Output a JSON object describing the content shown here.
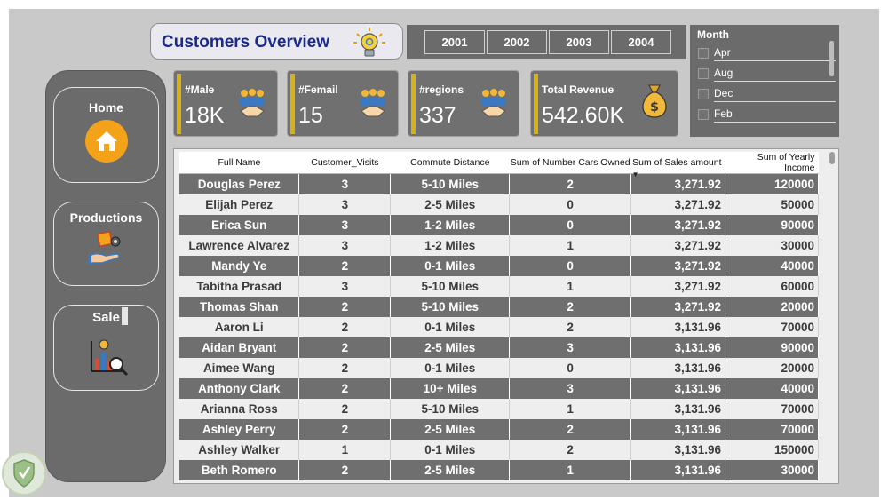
{
  "title": "Customers Overview",
  "nav": {
    "home": "Home",
    "productions": "Productions",
    "sale": "Sale"
  },
  "years": [
    "2001",
    "2002",
    "2003",
    "2004"
  ],
  "month_slicer": {
    "title": "Month",
    "items": [
      "Apr",
      "Aug",
      "Dec",
      "Feb"
    ]
  },
  "kpis": [
    {
      "label": "#Male",
      "value": "18K"
    },
    {
      "label": "#Femail",
      "value": "15"
    },
    {
      "label": "#regions",
      "value": "337"
    },
    {
      "label": "Total Revenue",
      "value": "542.60K"
    }
  ],
  "table": {
    "columns": [
      "Full Name",
      "Customer_Visits",
      "Commute Distance",
      "Sum of Number Cars Owned",
      "Sum of Sales amount",
      "Sum of Yearly Income"
    ],
    "rows": [
      [
        "Douglas Perez",
        "3",
        "5-10 Miles",
        "2",
        "3,271.92",
        "120000"
      ],
      [
        "Elijah Perez",
        "3",
        "2-5 Miles",
        "0",
        "3,271.92",
        "50000"
      ],
      [
        "Erica Sun",
        "3",
        "1-2 Miles",
        "0",
        "3,271.92",
        "90000"
      ],
      [
        "Lawrence Alvarez",
        "3",
        "1-2 Miles",
        "1",
        "3,271.92",
        "30000"
      ],
      [
        "Mandy Ye",
        "2",
        "0-1 Miles",
        "0",
        "3,271.92",
        "40000"
      ],
      [
        "Tabitha Prasad",
        "3",
        "5-10 Miles",
        "1",
        "3,271.92",
        "60000"
      ],
      [
        "Thomas Shan",
        "2",
        "5-10 Miles",
        "2",
        "3,271.92",
        "20000"
      ],
      [
        "Aaron Li",
        "2",
        "0-1 Miles",
        "2",
        "3,131.96",
        "70000"
      ],
      [
        "Aidan Bryant",
        "2",
        "2-5 Miles",
        "3",
        "3,131.96",
        "90000"
      ],
      [
        "Aimee Wang",
        "2",
        "0-1 Miles",
        "0",
        "3,131.96",
        "20000"
      ],
      [
        "Anthony Clark",
        "2",
        "10+ Miles",
        "3",
        "3,131.96",
        "40000"
      ],
      [
        "Arianna Ross",
        "2",
        "5-10 Miles",
        "1",
        "3,131.96",
        "70000"
      ],
      [
        "Ashley Perry",
        "2",
        "2-5 Miles",
        "2",
        "3,131.96",
        "70000"
      ],
      [
        "Ashley Walker",
        "1",
        "0-1 Miles",
        "2",
        "3,131.96",
        "150000"
      ],
      [
        "Beth Romero",
        "2",
        "2-5 Miles",
        "1",
        "3,131.96",
        "30000"
      ]
    ]
  },
  "colors": {
    "title_text": "#1a2a8c",
    "panel_gray": "#6b6b6b",
    "kpi_accent": "#d6b21a",
    "home_icon_bg": "#f5a21b"
  },
  "icons": {
    "title": "lightbulb-icon",
    "kpi": "people-handshake-icon",
    "revenue": "money-bag-icon",
    "home": "house-icon",
    "productions": "box-hand-icon",
    "sale": "chart-magnifier-icon",
    "logo": "shield-logo-icon"
  }
}
